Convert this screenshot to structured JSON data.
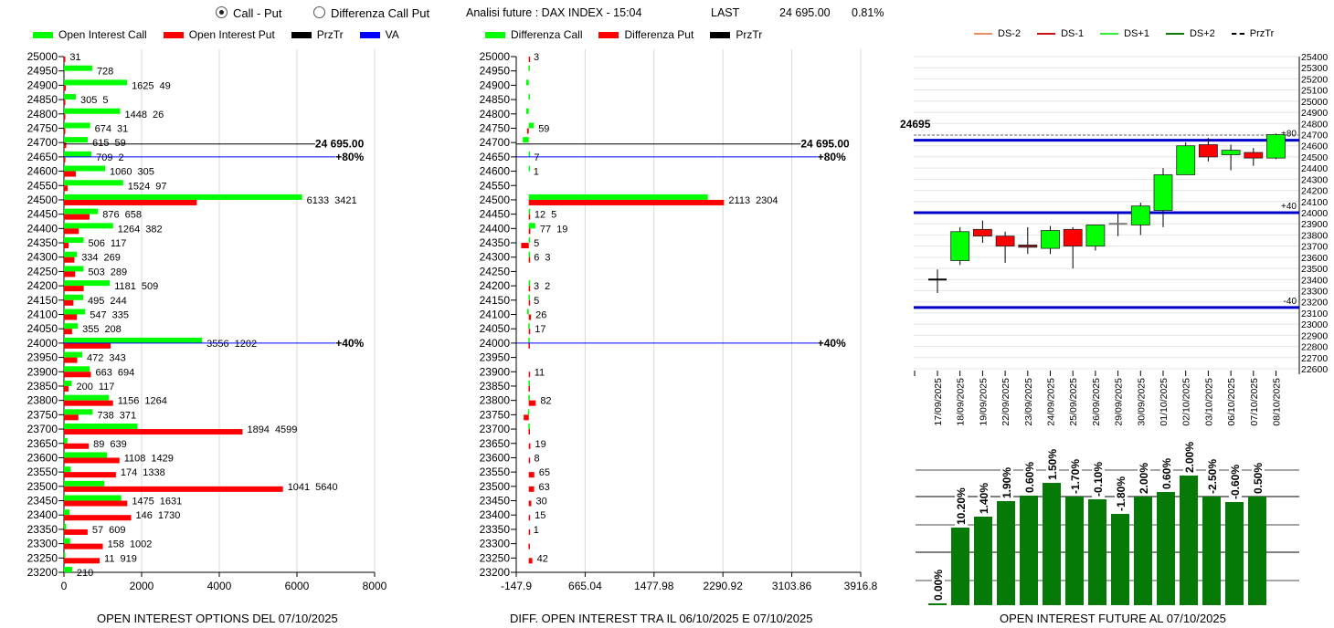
{
  "header": {
    "radio_call_put": "Call - Put",
    "radio_diff": "Differenza Call Put",
    "analysis_title": "Analisi future : DAX INDEX - 15:04",
    "last_label": "LAST",
    "last_value": "24 695.00",
    "change": "0.81%"
  },
  "legends": {
    "left": [
      {
        "label": "Open Interest Call",
        "color": "#00ff00"
      },
      {
        "label": "Open Interest Put",
        "color": "#ff0000"
      },
      {
        "label": "PrzTr",
        "color": "#000000"
      },
      {
        "label": "VA",
        "color": "#0000ff"
      }
    ],
    "middle": [
      {
        "label": "Differenza Call",
        "color": "#00ff00"
      },
      {
        "label": "Differenza Put",
        "color": "#ff0000"
      },
      {
        "label": "PrzTr",
        "color": "#000000"
      }
    ],
    "right": [
      {
        "label": "DS-2",
        "color": "#f08c64"
      },
      {
        "label": "DS-1",
        "color": "#d01010"
      },
      {
        "label": "DS+1",
        "color": "#33ee33"
      },
      {
        "label": "DS+2",
        "color": "#0b7a0b"
      },
      {
        "label": "PrzTr",
        "color": "#000000",
        "dashed": true
      }
    ]
  },
  "chart_data": [
    {
      "type": "bar",
      "orientation": "horizontal",
      "title": "OPEN INTEREST OPTIONS DEL 07/10/2025",
      "categories": [
        25000,
        24950,
        24900,
        24850,
        24800,
        24750,
        24700,
        24650,
        24600,
        24550,
        24500,
        24450,
        24400,
        24350,
        24300,
        24250,
        24200,
        24150,
        24100,
        24050,
        24000,
        23950,
        23900,
        23850,
        23800,
        23750,
        23700,
        23650,
        23600,
        23550,
        23500,
        23450,
        23400,
        23350,
        23300,
        23250,
        23200
      ],
      "series": [
        {
          "name": "Open Interest Call",
          "color": "#00ff00",
          "values": [
            0,
            728,
            1625,
            305,
            1448,
            674,
            615,
            709,
            1060,
            1524,
            6133,
            876,
            1264,
            506,
            334,
            503,
            1181,
            495,
            547,
            355,
            3556,
            472,
            663,
            200,
            1156,
            738,
            1894,
            89,
            1108,
            174,
            1041,
            1475,
            146,
            57,
            158,
            11,
            210
          ]
        },
        {
          "name": "Open Interest Put",
          "color": "#ff0000",
          "values": [
            31,
            0,
            49,
            5,
            26,
            31,
            59,
            2,
            305,
            97,
            3421,
            658,
            382,
            117,
            269,
            289,
            509,
            244,
            335,
            208,
            1202,
            343,
            694,
            117,
            1264,
            371,
            4599,
            639,
            1429,
            1338,
            5640,
            1631,
            1730,
            609,
            1002,
            919,
            0
          ]
        }
      ],
      "xlim": [
        0,
        8000
      ],
      "xticks": [
        "0",
        "2000",
        "4000",
        "6000",
        "8000"
      ],
      "grid": true,
      "reference_lines": [
        {
          "type": "PrzTr",
          "value": 24695,
          "label": "24 695.00",
          "color": "#000000"
        },
        {
          "type": "VA",
          "value": 24650,
          "label": "+80%",
          "color": "#0000ff"
        },
        {
          "type": "VA",
          "value": 24000,
          "label": "+40%",
          "color": "#0000ff"
        }
      ]
    },
    {
      "type": "bar",
      "orientation": "horizontal",
      "title": "DIFF. OPEN INTEREST TRA IL 06/10/2025 E 07/10/2025",
      "categories": [
        25000,
        24950,
        24900,
        24850,
        24800,
        24750,
        24700,
        24650,
        24600,
        24550,
        24500,
        24450,
        24400,
        24350,
        24300,
        24250,
        24200,
        24150,
        24100,
        24050,
        24000,
        23950,
        23900,
        23850,
        23800,
        23750,
        23700,
        23650,
        23600,
        23550,
        23500,
        23450,
        23400,
        23350,
        23300,
        23250,
        23200
      ],
      "series": [
        {
          "name": "Differenza Call",
          "color": "#00ff00",
          "values": [
            0,
            -3,
            -30,
            -2,
            -30,
            59,
            -70,
            7,
            1,
            0,
            2113,
            12,
            77,
            5,
            6,
            0,
            3,
            -3,
            -20,
            -5,
            -5,
            0,
            0,
            -3,
            -5,
            -10,
            -5,
            0,
            0,
            0,
            0,
            0,
            0,
            0,
            0,
            0,
            0
          ]
        },
        {
          "name": "Differenza Put",
          "color": "#ff0000",
          "values": [
            3,
            0,
            0,
            0,
            0,
            -20,
            0,
            0,
            0,
            0,
            2304,
            5,
            19,
            -90,
            3,
            0,
            2,
            5,
            26,
            17,
            -3,
            0,
            11,
            -3,
            82,
            -60,
            -2,
            19,
            8,
            65,
            63,
            30,
            15,
            1,
            -3,
            42,
            0
          ]
        }
      ],
      "xlim": [
        -147.9,
        3916.8
      ],
      "xticks": [
        "-147.9",
        "665.04",
        "1477.98",
        "2290.92",
        "3103.86",
        "3916.8"
      ],
      "grid": true,
      "reference_lines": [
        {
          "type": "PrzTr",
          "value": 24695,
          "label": "24 695.00",
          "color": "#000000"
        },
        {
          "type": "VA",
          "value": 24650,
          "label": "+80%",
          "color": "#0000ff"
        },
        {
          "type": "VA",
          "value": 24000,
          "label": "+40%",
          "color": "#0000ff"
        }
      ]
    },
    {
      "type": "candlestick",
      "dates": [
        "17/09/2025",
        "18/09/2025",
        "19/09/2025",
        "22/09/2025",
        "23/09/2025",
        "24/09/2025",
        "25/09/2025",
        "26/09/2025",
        "29/09/2025",
        "30/09/2025",
        "01/10/2025",
        "02/10/2025",
        "03/10/2025",
        "06/10/2025",
        "07/10/2025",
        "08/10/2025"
      ],
      "ohlc": [
        [
          23400,
          23490,
          23280,
          23400
        ],
        [
          23570,
          23870,
          23530,
          23830
        ],
        [
          23850,
          23930,
          23730,
          23790
        ],
        [
          23790,
          23830,
          23550,
          23700
        ],
        [
          23710,
          23870,
          23630,
          23690
        ],
        [
          23680,
          23880,
          23630,
          23840
        ],
        [
          23850,
          23870,
          23500,
          23700
        ],
        [
          23700,
          23890,
          23660,
          23890
        ],
        [
          23900,
          23990,
          23790,
          23900
        ],
        [
          23890,
          24090,
          23800,
          24060
        ],
        [
          24020,
          24400,
          23870,
          24340
        ],
        [
          24340,
          24630,
          24340,
          24600
        ],
        [
          24610,
          24670,
          24460,
          24500
        ],
        [
          24520,
          24610,
          24380,
          24560
        ],
        [
          24540,
          24580,
          24420,
          24490
        ],
        [
          24490,
          24710,
          24480,
          24700
        ]
      ],
      "ylim": [
        22600,
        25400
      ],
      "yticks": [
        25400,
        25300,
        25200,
        25100,
        25000,
        24900,
        24800,
        24700,
        24600,
        24500,
        24400,
        24300,
        24200,
        24100,
        24000,
        23900,
        23800,
        23700,
        23600,
        23500,
        23400,
        23300,
        23200,
        23100,
        23000,
        22900,
        22800,
        22700,
        22600
      ],
      "price_label": "24695",
      "price": 24695,
      "levels": [
        {
          "value": 24650,
          "label": "+80",
          "color": "#0000cc"
        },
        {
          "value": 24000,
          "label": "+40",
          "color": "#0000cc"
        },
        {
          "value": 23150,
          "label": "-40",
          "color": "#0000cc"
        }
      ],
      "grid": true
    },
    {
      "type": "bar",
      "title": "OPEN INTEREST FUTURE AL 07/10/2025",
      "color": "#067a06",
      "values": [
        2,
        85,
        97,
        114,
        120,
        134,
        119,
        116,
        100,
        119,
        124,
        142,
        119,
        113,
        119
      ],
      "labels": [
        "0.00%",
        "10.20%",
        "1.40%",
        "1.90%",
        "0.60%",
        "1.50%",
        "-1.70%",
        "-0.10%",
        "-1.80%",
        "2.00%",
        "0.60%",
        "2.00%",
        "-2.50%",
        "-0.60%",
        "0.50%"
      ],
      "grid": true
    }
  ]
}
